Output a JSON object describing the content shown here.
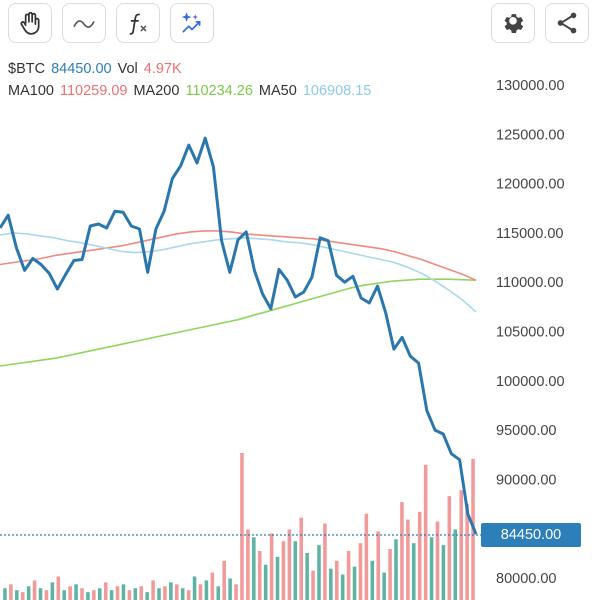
{
  "toolbar": {
    "buttons": [
      {
        "name": "hand-tool-button",
        "icon": "hand-icon"
      },
      {
        "name": "line-tool-button",
        "icon": "wave-icon"
      },
      {
        "name": "function-button",
        "icon": "function-icon"
      },
      {
        "name": "ai-button",
        "icon": "sparkle-chart-icon"
      },
      {
        "name": "settings-button",
        "icon": "gear-icon"
      },
      {
        "name": "share-button",
        "icon": "share-icon"
      }
    ]
  },
  "info": {
    "symbol": "$BTC",
    "price": "84450.00",
    "vol_label": "Vol",
    "vol": "4.97K",
    "ma100_label": "MA100",
    "ma100": "110259.09",
    "ma200_label": "MA200",
    "ma200": "110234.26",
    "ma50_label": "MA50",
    "ma50": "106908.15"
  },
  "current_price_label": "84450.00",
  "chart_data": {
    "type": "line",
    "y_ticks": [
      "130000.00",
      "125000.00",
      "120000.00",
      "115000.00",
      "110000.00",
      "105000.00",
      "100000.00",
      "95000.00",
      "90000.00",
      "80000.00"
    ],
    "ylim": [
      78000,
      132000
    ],
    "current_price": 84450,
    "colors": {
      "price": "#2a77ad",
      "ma100": "#f08a7e",
      "ma200": "#8fd65e",
      "ma50": "#a9d8ef",
      "vol_up": "#5fb3a3",
      "vol_down": "#f29a9a",
      "price_line": "#2c7fb8"
    },
    "price": [
      115500,
      116800,
      113500,
      111200,
      112400,
      111800,
      110900,
      109300,
      110800,
      112200,
      112300,
      115700,
      115900,
      115500,
      117200,
      117100,
      115700,
      115400,
      111000,
      115400,
      117200,
      120500,
      121800,
      123900,
      122100,
      124600,
      121700,
      114200,
      111000,
      114300,
      115100,
      111200,
      108800,
      107300,
      111300,
      110200,
      108500,
      109000,
      110500,
      114500,
      114200,
      110700,
      110000,
      110600,
      108400,
      107900,
      109600,
      106900,
      103200,
      104400,
      102500,
      101800,
      97000,
      95000,
      94600,
      92600,
      92000,
      86500,
      84450
    ],
    "ma100": [
      111800,
      112000,
      112200,
      112400,
      112700,
      112900,
      113100,
      113300,
      113500,
      113700,
      114000,
      114300,
      114600,
      114900,
      115100,
      115200,
      115200,
      115100,
      114900,
      114800,
      114700,
      114600,
      114500,
      114400,
      114200,
      114000,
      113800,
      113600,
      113400,
      113100,
      112700,
      112300,
      111800,
      111300,
      110800,
      110200
    ],
    "ma200": [
      101500,
      101700,
      101900,
      102100,
      102300,
      102600,
      102900,
      103200,
      103500,
      103800,
      104100,
      104400,
      104700,
      105000,
      105300,
      105600,
      105900,
      106200,
      106600,
      107000,
      107400,
      107800,
      108200,
      108600,
      109000,
      109400,
      109700,
      109900,
      110100,
      110200,
      110300,
      110300,
      110300,
      110250,
      110200
    ],
    "ma50": [
      114800,
      115000,
      114900,
      114700,
      114500,
      114200,
      114000,
      113700,
      113400,
      113100,
      113000,
      113100,
      113300,
      113600,
      113900,
      114100,
      114300,
      114400,
      114500,
      114400,
      114300,
      114100,
      114000,
      113800,
      113500,
      113200,
      112900,
      112600,
      112300,
      112000,
      111500,
      110900,
      110100,
      109200,
      108200,
      107000
    ],
    "volume": [
      {
        "v": 0.6,
        "up": true
      },
      {
        "v": 0.8,
        "up": false
      },
      {
        "v": 0.5,
        "up": true
      },
      {
        "v": 0.4,
        "up": false
      },
      {
        "v": 0.7,
        "up": true
      },
      {
        "v": 1.0,
        "up": false
      },
      {
        "v": 0.6,
        "up": true
      },
      {
        "v": 0.5,
        "up": false
      },
      {
        "v": 0.9,
        "up": true
      },
      {
        "v": 1.2,
        "up": false
      },
      {
        "v": 0.5,
        "up": true
      },
      {
        "v": 0.7,
        "up": false
      },
      {
        "v": 0.8,
        "up": true
      },
      {
        "v": 0.6,
        "up": false
      },
      {
        "v": 0.4,
        "up": true
      },
      {
        "v": 0.5,
        "up": false
      },
      {
        "v": 0.6,
        "up": true
      },
      {
        "v": 0.9,
        "up": false
      },
      {
        "v": 0.5,
        "up": true
      },
      {
        "v": 0.7,
        "up": false
      },
      {
        "v": 0.8,
        "up": true
      },
      {
        "v": 0.5,
        "up": false
      },
      {
        "v": 0.6,
        "up": true
      },
      {
        "v": 0.7,
        "up": false
      },
      {
        "v": 0.4,
        "up": true
      },
      {
        "v": 1.0,
        "up": false
      },
      {
        "v": 0.6,
        "up": true
      },
      {
        "v": 0.7,
        "up": false
      },
      {
        "v": 0.9,
        "up": true
      },
      {
        "v": 0.8,
        "up": false
      },
      {
        "v": 0.6,
        "up": true
      },
      {
        "v": 0.5,
        "up": false
      },
      {
        "v": 1.2,
        "up": true
      },
      {
        "v": 0.8,
        "up": false
      },
      {
        "v": 1.0,
        "up": true
      },
      {
        "v": 1.4,
        "up": false
      },
      {
        "v": 0.7,
        "up": true
      },
      {
        "v": 2.0,
        "up": false
      },
      {
        "v": 1.1,
        "up": true
      },
      {
        "v": 0.8,
        "up": false
      },
      {
        "v": 7.5,
        "up": false
      },
      {
        "v": 3.6,
        "up": false
      },
      {
        "v": 3.2,
        "up": true
      },
      {
        "v": 2.5,
        "up": false
      },
      {
        "v": 1.8,
        "up": true
      },
      {
        "v": 3.4,
        "up": false
      },
      {
        "v": 2.2,
        "up": true
      },
      {
        "v": 3.0,
        "up": false
      },
      {
        "v": 3.6,
        "up": false
      },
      {
        "v": 3.0,
        "up": true
      },
      {
        "v": 4.2,
        "up": false
      },
      {
        "v": 2.4,
        "up": true
      },
      {
        "v": 1.5,
        "up": false
      },
      {
        "v": 2.8,
        "up": true
      },
      {
        "v": 3.9,
        "up": false
      },
      {
        "v": 1.6,
        "up": true
      },
      {
        "v": 2.0,
        "up": false
      },
      {
        "v": 1.3,
        "up": true
      },
      {
        "v": 2.5,
        "up": false
      },
      {
        "v": 1.7,
        "up": true
      },
      {
        "v": 2.9,
        "up": false
      },
      {
        "v": 4.4,
        "up": false
      },
      {
        "v": 2.0,
        "up": true
      },
      {
        "v": 3.5,
        "up": false
      },
      {
        "v": 1.4,
        "up": true
      },
      {
        "v": 2.6,
        "up": false
      },
      {
        "v": 3.1,
        "up": true
      },
      {
        "v": 5.0,
        "up": false
      },
      {
        "v": 4.1,
        "up": false
      },
      {
        "v": 2.9,
        "up": true
      },
      {
        "v": 4.5,
        "up": false
      },
      {
        "v": 6.9,
        "up": false
      },
      {
        "v": 3.2,
        "up": true
      },
      {
        "v": 4.0,
        "up": false
      },
      {
        "v": 2.8,
        "up": true
      },
      {
        "v": 5.3,
        "up": false
      },
      {
        "v": 3.6,
        "up": true
      },
      {
        "v": 5.6,
        "up": false
      },
      {
        "v": 4.9,
        "up": false
      },
      {
        "v": 7.2,
        "up": false
      }
    ]
  }
}
